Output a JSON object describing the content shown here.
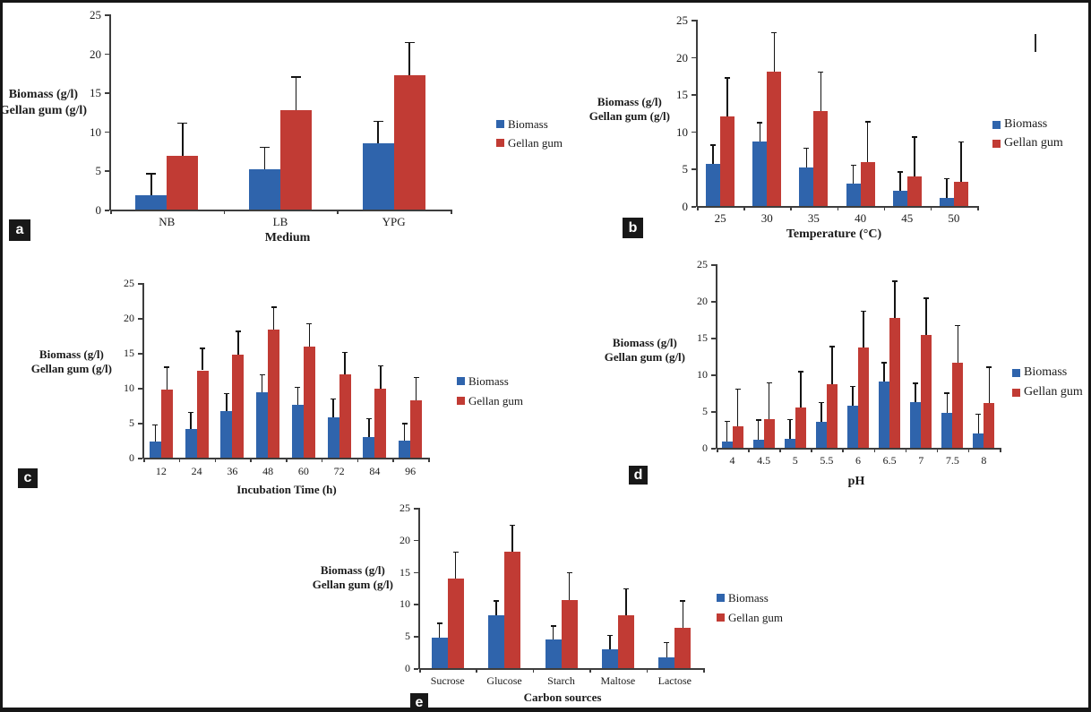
{
  "figure": {
    "background": "#ffffff",
    "border_color": "#161616",
    "axis_color": "#3d3d3d",
    "error_bar_color": "#141414"
  },
  "legend_labels": [
    "Biomass",
    "Gellan gum"
  ],
  "series_colors": {
    "biomass": "#2F64AC",
    "gellan_gum": "#C13B34"
  },
  "chart_data": [
    {
      "id": "a",
      "panel_label": "a",
      "type": "bar",
      "title": "",
      "xlabel": "Medium",
      "ylabel": [
        "Biomass (g/l)",
        "Gellan gum (g/l)"
      ],
      "ylim": [
        0,
        25
      ],
      "yticks": [
        0,
        5,
        10,
        15,
        20,
        25
      ],
      "grid": false,
      "legend_position": "right",
      "categories": [
        "NB",
        "LB",
        "YPG"
      ],
      "series": [
        {
          "name": "Biomass",
          "color": "#2F64AC",
          "values": [
            1.8,
            5.2,
            8.5
          ],
          "errors": [
            2.8,
            2.8,
            2.8
          ]
        },
        {
          "name": "Gellan gum",
          "color": "#C13B34",
          "values": [
            6.9,
            12.7,
            17.2
          ],
          "errors": [
            4.2,
            4.3,
            4.2
          ]
        }
      ]
    },
    {
      "id": "b",
      "panel_label": "b",
      "type": "bar",
      "title": "",
      "xlabel": "Temperature (°C)",
      "ylabel": [
        "Biomass (g/l)",
        "Gellan gum (g/l)"
      ],
      "ylim": [
        0,
        25
      ],
      "yticks": [
        0,
        5,
        10,
        15,
        20,
        25
      ],
      "grid": false,
      "legend_position": "right",
      "categories": [
        "25",
        "30",
        "35",
        "40",
        "45",
        "50"
      ],
      "series": [
        {
          "name": "Biomass",
          "color": "#2F64AC",
          "values": [
            5.7,
            8.6,
            5.2,
            3.0,
            2.0,
            1.1
          ],
          "errors": [
            2.5,
            2.6,
            2.6,
            2.5,
            2.6,
            2.6
          ]
        },
        {
          "name": "Gellan gum",
          "color": "#C13B34",
          "values": [
            12.0,
            18.0,
            12.7,
            5.9,
            4.0,
            3.3
          ],
          "errors": [
            5.2,
            5.3,
            5.3,
            5.4,
            5.3,
            5.3
          ]
        }
      ]
    },
    {
      "id": "c",
      "panel_label": "c",
      "type": "bar",
      "title": "",
      "xlabel": "Incubation Time (h)",
      "ylabel": [
        "Biomass (g/l)",
        "Gellan gum (g/l)"
      ],
      "ylim": [
        0,
        25
      ],
      "yticks": [
        0,
        5,
        10,
        15,
        20,
        25
      ],
      "grid": false,
      "legend_position": "right",
      "categories": [
        "12",
        "24",
        "36",
        "48",
        "60",
        "72",
        "84",
        "96"
      ],
      "series": [
        {
          "name": "Biomass",
          "color": "#2F64AC",
          "values": [
            2.3,
            4.1,
            6.7,
            9.4,
            7.6,
            5.8,
            3.0,
            2.4
          ],
          "errors": [
            2.4,
            2.4,
            2.5,
            2.5,
            2.5,
            2.6,
            2.6,
            2.5
          ]
        },
        {
          "name": "Gellan gum",
          "color": "#C13B34",
          "values": [
            9.8,
            12.5,
            14.8,
            18.3,
            15.9,
            11.9,
            9.9,
            8.2
          ],
          "errors": [
            3.2,
            3.2,
            3.3,
            3.3,
            3.3,
            3.2,
            3.3,
            3.3
          ]
        }
      ]
    },
    {
      "id": "d",
      "panel_label": "d",
      "type": "bar",
      "title": "",
      "xlabel": "pH",
      "ylabel": [
        "Biomass (g/l)",
        "Gellan gum (g/l)"
      ],
      "ylim": [
        0,
        25
      ],
      "yticks": [
        0,
        5,
        10,
        15,
        20,
        25
      ],
      "grid": false,
      "legend_position": "right",
      "categories": [
        "4",
        "4.5",
        "5",
        "5.5",
        "6",
        "6.5",
        "7",
        "7.5",
        "8"
      ],
      "series": [
        {
          "name": "Biomass",
          "color": "#2F64AC",
          "values": [
            0.9,
            1.1,
            1.2,
            3.5,
            5.7,
            9.0,
            6.2,
            4.8,
            1.9
          ],
          "errors": [
            2.7,
            2.7,
            2.7,
            2.7,
            2.7,
            2.6,
            2.6,
            2.7,
            2.7
          ]
        },
        {
          "name": "Gellan gum",
          "color": "#C13B34",
          "values": [
            2.9,
            3.9,
            5.5,
            8.7,
            13.6,
            17.7,
            15.4,
            11.6,
            6.1
          ],
          "errors": [
            5.1,
            5.0,
            4.9,
            5.1,
            5.0,
            5.0,
            5.0,
            5.1,
            4.9
          ]
        }
      ]
    },
    {
      "id": "e",
      "panel_label": "e",
      "type": "bar",
      "title": "",
      "xlabel": "Carbon sources",
      "ylabel": [
        "Biomass (g/l)",
        "Gellan gum (g/l)"
      ],
      "ylim": [
        0,
        25
      ],
      "yticks": [
        0,
        5,
        10,
        15,
        20,
        25
      ],
      "grid": false,
      "legend_position": "right",
      "categories": [
        "Sucrose",
        "Glucose",
        "Starch",
        "Maltose",
        "Lactose"
      ],
      "series": [
        {
          "name": "Biomass",
          "color": "#2F64AC",
          "values": [
            4.7,
            8.3,
            4.4,
            2.9,
            1.7
          ],
          "errors": [
            2.3,
            2.2,
            2.2,
            2.2,
            2.3
          ]
        },
        {
          "name": "Gellan gum",
          "color": "#C13B34",
          "values": [
            13.9,
            18.1,
            10.6,
            8.2,
            6.3
          ],
          "errors": [
            4.2,
            4.2,
            4.3,
            4.2,
            4.2
          ]
        }
      ]
    }
  ]
}
